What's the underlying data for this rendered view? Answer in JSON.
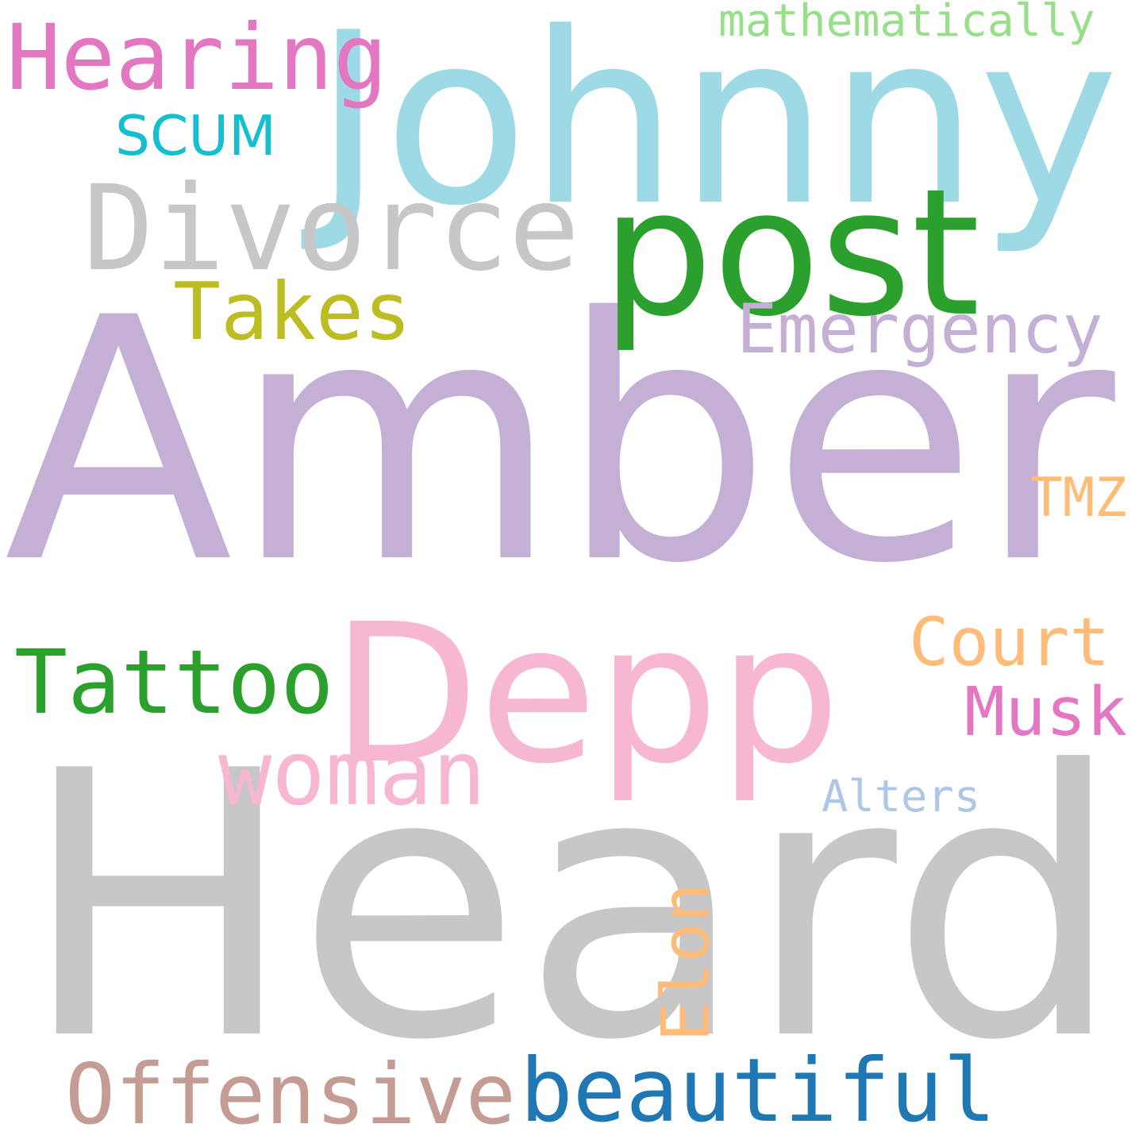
{
  "words": [
    {
      "id": "amber",
      "text": "Amber",
      "color": "#c5b0d5"
    },
    {
      "id": "heard",
      "text": "Heard",
      "color": "#c7c7c7"
    },
    {
      "id": "johnny",
      "text": "Johnny",
      "color": "#9edae5"
    },
    {
      "id": "depp",
      "text": "Depp",
      "color": "#f7b6d2"
    },
    {
      "id": "post",
      "text": "post",
      "color": "#2ca02c"
    },
    {
      "id": "divorce",
      "text": "Divorce",
      "color": "#c7c7c7"
    },
    {
      "id": "hearing",
      "text": "Hearing",
      "color": "#e377c2"
    },
    {
      "id": "beautiful",
      "text": "beautiful",
      "color": "#1f77b4"
    },
    {
      "id": "offensive",
      "text": "Offensive",
      "color": "#c49c94"
    },
    {
      "id": "tattoo",
      "text": "Tattoo",
      "color": "#2ca02c"
    },
    {
      "id": "woman",
      "text": "woman",
      "color": "#f7b6d2"
    },
    {
      "id": "emergency",
      "text": "Emergency",
      "color": "#c5b0d5"
    },
    {
      "id": "takes",
      "text": "Takes",
      "color": "#bcbd22"
    },
    {
      "id": "court",
      "text": "Court",
      "color": "#ffbb78"
    },
    {
      "id": "musk",
      "text": "Musk",
      "color": "#e377c2"
    },
    {
      "id": "elon",
      "text": "Elon",
      "color": "#ffbb78"
    },
    {
      "id": "scum",
      "text": "SCUM",
      "color": "#17becf"
    },
    {
      "id": "tmz",
      "text": "TMZ",
      "color": "#ffbb78"
    },
    {
      "id": "alters",
      "text": "Alters",
      "color": "#aec7e8"
    },
    {
      "id": "mathematically",
      "text": "mathematically",
      "color": "#98df8a"
    }
  ]
}
